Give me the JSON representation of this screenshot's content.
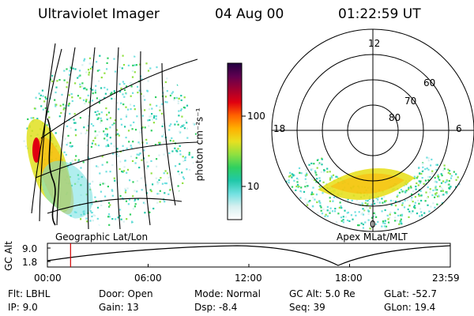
{
  "header": {
    "title": "Ultraviolet Imager",
    "date": "04 Aug 00",
    "time": "01:22:59 UT"
  },
  "geo_panel": {
    "label": "Geographic Lat/Lon"
  },
  "apex_panel": {
    "label": "Apex MLat/MLT",
    "mlt_labels": [
      "12",
      "18",
      "6",
      "0"
    ],
    "lat_labels": [
      "60",
      "70",
      "80"
    ]
  },
  "colorbar": {
    "unit_label": "photon cm⁻²s⁻¹",
    "ticks": [
      "100",
      "10"
    ],
    "colors": [
      "#ffffff",
      "#d8f0f0",
      "#70e0e0",
      "#20c8a8",
      "#30d060",
      "#90e040",
      "#e8e020",
      "#ffb000",
      "#ff6000",
      "#e00010",
      "#a00030",
      "#600050",
      "#200040"
    ]
  },
  "altitude_plot": {
    "y_axis_label": "GC Alt",
    "y_ticks": [
      "9.0",
      "1.8"
    ],
    "x_ticks": [
      "00:00",
      "06:00",
      "12:00",
      "18:00",
      "23:59"
    ],
    "cursor_time_hours": 1.38
  },
  "footer": {
    "flt": "Flt:  LBHL",
    "ip": "IP:  9.0",
    "door": "Door:  Open",
    "gain": "Gain:  13",
    "mode": "Mode:  Normal",
    "dsp": "Dsp:    -8.4",
    "gc_alt": "GC Alt:  5.0 Re",
    "seq": "Seq:  39",
    "glat": "GLat:   -52.7",
    "glon": "GLon:   19.4"
  },
  "colors": {
    "cursor": "#d00000",
    "ink": "#000000"
  }
}
